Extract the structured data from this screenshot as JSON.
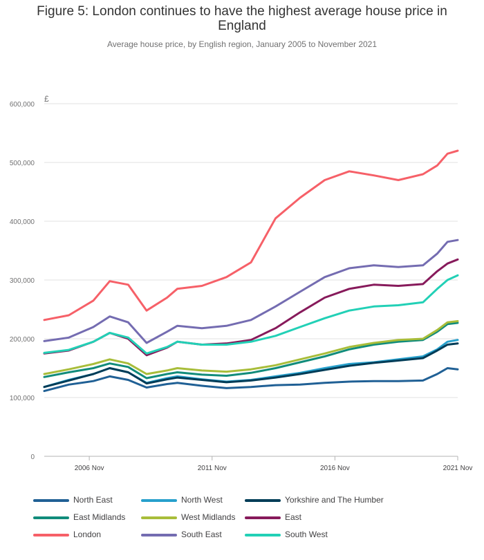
{
  "chart_data": {
    "type": "line",
    "title": "Figure 5: London continues to have the highest average house price in England",
    "subtitle": "Average house price, by English region, January 2005 to November 2021",
    "xlabel": "",
    "ylabel": "£",
    "x_range": [
      "2005-01",
      "2021-11"
    ],
    "ylim": [
      0,
      600000
    ],
    "y_ticks": [
      0,
      100000,
      200000,
      300000,
      400000,
      500000,
      600000
    ],
    "y_tick_labels": [
      "0",
      "100,000",
      "200,000",
      "300,000",
      "400,000",
      "500,000",
      "600,000"
    ],
    "x_ticks": [
      "2006-11",
      "2011-11",
      "2016-11",
      "2021-11"
    ],
    "x_tick_labels": [
      "2006 Nov",
      "2011 Nov",
      "2016 Nov",
      "2021 Nov"
    ],
    "grid": "horizontal",
    "legend_position": "bottom",
    "series": [
      {
        "name": "North East",
        "color": "#206095",
        "points": [
          [
            "2005-01",
            111000
          ],
          [
            "2006-01",
            122000
          ],
          [
            "2007-01",
            128000
          ],
          [
            "2007-09",
            136000
          ],
          [
            "2008-06",
            130000
          ],
          [
            "2009-03",
            117000
          ],
          [
            "2010-01",
            123000
          ],
          [
            "2010-06",
            125000
          ],
          [
            "2011-06",
            120000
          ],
          [
            "2012-06",
            116000
          ],
          [
            "2013-06",
            118000
          ],
          [
            "2014-06",
            121000
          ],
          [
            "2015-06",
            122000
          ],
          [
            "2016-06",
            125000
          ],
          [
            "2017-06",
            127000
          ],
          [
            "2018-06",
            128000
          ],
          [
            "2019-06",
            128000
          ],
          [
            "2020-06",
            129000
          ],
          [
            "2021-01",
            140000
          ],
          [
            "2021-06",
            150000
          ],
          [
            "2021-11",
            148000
          ]
        ]
      },
      {
        "name": "North West",
        "color": "#27a0cc",
        "points": [
          [
            "2005-01",
            118000
          ],
          [
            "2006-01",
            130000
          ],
          [
            "2007-01",
            140000
          ],
          [
            "2007-09",
            150000
          ],
          [
            "2008-06",
            143000
          ],
          [
            "2009-03",
            125000
          ],
          [
            "2010-01",
            133000
          ],
          [
            "2010-06",
            136000
          ],
          [
            "2011-06",
            131000
          ],
          [
            "2012-06",
            127000
          ],
          [
            "2013-06",
            130000
          ],
          [
            "2014-06",
            136000
          ],
          [
            "2015-06",
            142000
          ],
          [
            "2016-06",
            150000
          ],
          [
            "2017-06",
            157000
          ],
          [
            "2018-06",
            160000
          ],
          [
            "2019-06",
            165000
          ],
          [
            "2020-06",
            170000
          ],
          [
            "2021-01",
            182000
          ],
          [
            "2021-06",
            195000
          ],
          [
            "2021-11",
            198000
          ]
        ]
      },
      {
        "name": "Yorkshire and The Humber",
        "color": "#003c57",
        "points": [
          [
            "2005-01",
            118000
          ],
          [
            "2006-01",
            129000
          ],
          [
            "2007-01",
            140000
          ],
          [
            "2007-09",
            150000
          ],
          [
            "2008-06",
            143000
          ],
          [
            "2009-03",
            124000
          ],
          [
            "2010-01",
            131000
          ],
          [
            "2010-06",
            134000
          ],
          [
            "2011-06",
            130000
          ],
          [
            "2012-06",
            126000
          ],
          [
            "2013-06",
            129000
          ],
          [
            "2014-06",
            134000
          ],
          [
            "2015-06",
            140000
          ],
          [
            "2016-06",
            147000
          ],
          [
            "2017-06",
            154000
          ],
          [
            "2018-06",
            159000
          ],
          [
            "2019-06",
            163000
          ],
          [
            "2020-06",
            167000
          ],
          [
            "2021-01",
            180000
          ],
          [
            "2021-06",
            190000
          ],
          [
            "2021-11",
            192000
          ]
        ]
      },
      {
        "name": "East Midlands",
        "color": "#118c7b",
        "points": [
          [
            "2005-01",
            135000
          ],
          [
            "2006-01",
            143000
          ],
          [
            "2007-01",
            150000
          ],
          [
            "2007-09",
            158000
          ],
          [
            "2008-06",
            152000
          ],
          [
            "2009-03",
            133000
          ],
          [
            "2010-01",
            140000
          ],
          [
            "2010-06",
            143000
          ],
          [
            "2011-06",
            139000
          ],
          [
            "2012-06",
            137000
          ],
          [
            "2013-06",
            142000
          ],
          [
            "2014-06",
            150000
          ],
          [
            "2015-06",
            160000
          ],
          [
            "2016-06",
            170000
          ],
          [
            "2017-06",
            182000
          ],
          [
            "2018-06",
            190000
          ],
          [
            "2019-06",
            195000
          ],
          [
            "2020-06",
            198000
          ],
          [
            "2021-01",
            212000
          ],
          [
            "2021-06",
            225000
          ],
          [
            "2021-11",
            227000
          ]
        ]
      },
      {
        "name": "West Midlands",
        "color": "#a8bd3a",
        "points": [
          [
            "2005-01",
            140000
          ],
          [
            "2006-01",
            148000
          ],
          [
            "2007-01",
            157000
          ],
          [
            "2007-09",
            165000
          ],
          [
            "2008-06",
            158000
          ],
          [
            "2009-03",
            140000
          ],
          [
            "2010-01",
            146000
          ],
          [
            "2010-06",
            150000
          ],
          [
            "2011-06",
            146000
          ],
          [
            "2012-06",
            144000
          ],
          [
            "2013-06",
            148000
          ],
          [
            "2014-06",
            155000
          ],
          [
            "2015-06",
            165000
          ],
          [
            "2016-06",
            175000
          ],
          [
            "2017-06",
            186000
          ],
          [
            "2018-06",
            193000
          ],
          [
            "2019-06",
            198000
          ],
          [
            "2020-06",
            200000
          ],
          [
            "2021-01",
            215000
          ],
          [
            "2021-06",
            228000
          ],
          [
            "2021-11",
            230000
          ]
        ]
      },
      {
        "name": "East",
        "color": "#871a5b",
        "points": [
          [
            "2005-01",
            175000
          ],
          [
            "2006-01",
            180000
          ],
          [
            "2007-01",
            195000
          ],
          [
            "2007-09",
            210000
          ],
          [
            "2008-06",
            200000
          ],
          [
            "2009-03",
            172000
          ],
          [
            "2010-01",
            185000
          ],
          [
            "2010-06",
            195000
          ],
          [
            "2011-06",
            190000
          ],
          [
            "2012-06",
            192000
          ],
          [
            "2013-06",
            198000
          ],
          [
            "2014-06",
            218000
          ],
          [
            "2015-06",
            245000
          ],
          [
            "2016-06",
            270000
          ],
          [
            "2017-06",
            285000
          ],
          [
            "2018-06",
            292000
          ],
          [
            "2019-06",
            290000
          ],
          [
            "2020-06",
            293000
          ],
          [
            "2021-01",
            315000
          ],
          [
            "2021-06",
            328000
          ],
          [
            "2021-11",
            335000
          ]
        ]
      },
      {
        "name": "London",
        "color": "#f66068",
        "points": [
          [
            "2005-01",
            232000
          ],
          [
            "2006-01",
            240000
          ],
          [
            "2007-01",
            265000
          ],
          [
            "2007-09",
            298000
          ],
          [
            "2008-06",
            292000
          ],
          [
            "2009-03",
            248000
          ],
          [
            "2010-01",
            270000
          ],
          [
            "2010-06",
            285000
          ],
          [
            "2011-06",
            290000
          ],
          [
            "2012-06",
            305000
          ],
          [
            "2013-06",
            330000
          ],
          [
            "2014-06",
            405000
          ],
          [
            "2015-06",
            440000
          ],
          [
            "2016-06",
            470000
          ],
          [
            "2017-06",
            485000
          ],
          [
            "2018-06",
            478000
          ],
          [
            "2019-06",
            470000
          ],
          [
            "2020-06",
            480000
          ],
          [
            "2021-01",
            495000
          ],
          [
            "2021-06",
            515000
          ],
          [
            "2021-11",
            520000
          ]
        ]
      },
      {
        "name": "South East",
        "color": "#746cb1",
        "points": [
          [
            "2005-01",
            196000
          ],
          [
            "2006-01",
            202000
          ],
          [
            "2007-01",
            220000
          ],
          [
            "2007-09",
            238000
          ],
          [
            "2008-06",
            228000
          ],
          [
            "2009-03",
            193000
          ],
          [
            "2010-01",
            212000
          ],
          [
            "2010-06",
            222000
          ],
          [
            "2011-06",
            218000
          ],
          [
            "2012-06",
            222000
          ],
          [
            "2013-06",
            232000
          ],
          [
            "2014-06",
            255000
          ],
          [
            "2015-06",
            280000
          ],
          [
            "2016-06",
            305000
          ],
          [
            "2017-06",
            320000
          ],
          [
            "2018-06",
            325000
          ],
          [
            "2019-06",
            322000
          ],
          [
            "2020-06",
            325000
          ],
          [
            "2021-01",
            345000
          ],
          [
            "2021-06",
            365000
          ],
          [
            "2021-11",
            368000
          ]
        ]
      },
      {
        "name": "South West",
        "color": "#22d0b6",
        "points": [
          [
            "2005-01",
            176000
          ],
          [
            "2006-01",
            181000
          ],
          [
            "2007-01",
            195000
          ],
          [
            "2007-09",
            210000
          ],
          [
            "2008-06",
            202000
          ],
          [
            "2009-03",
            175000
          ],
          [
            "2010-01",
            186000
          ],
          [
            "2010-06",
            195000
          ],
          [
            "2011-06",
            190000
          ],
          [
            "2012-06",
            190000
          ],
          [
            "2013-06",
            195000
          ],
          [
            "2014-06",
            205000
          ],
          [
            "2015-06",
            220000
          ],
          [
            "2016-06",
            235000
          ],
          [
            "2017-06",
            248000
          ],
          [
            "2018-06",
            255000
          ],
          [
            "2019-06",
            257000
          ],
          [
            "2020-06",
            262000
          ],
          [
            "2021-01",
            285000
          ],
          [
            "2021-06",
            300000
          ],
          [
            "2021-11",
            308000
          ]
        ]
      }
    ]
  }
}
